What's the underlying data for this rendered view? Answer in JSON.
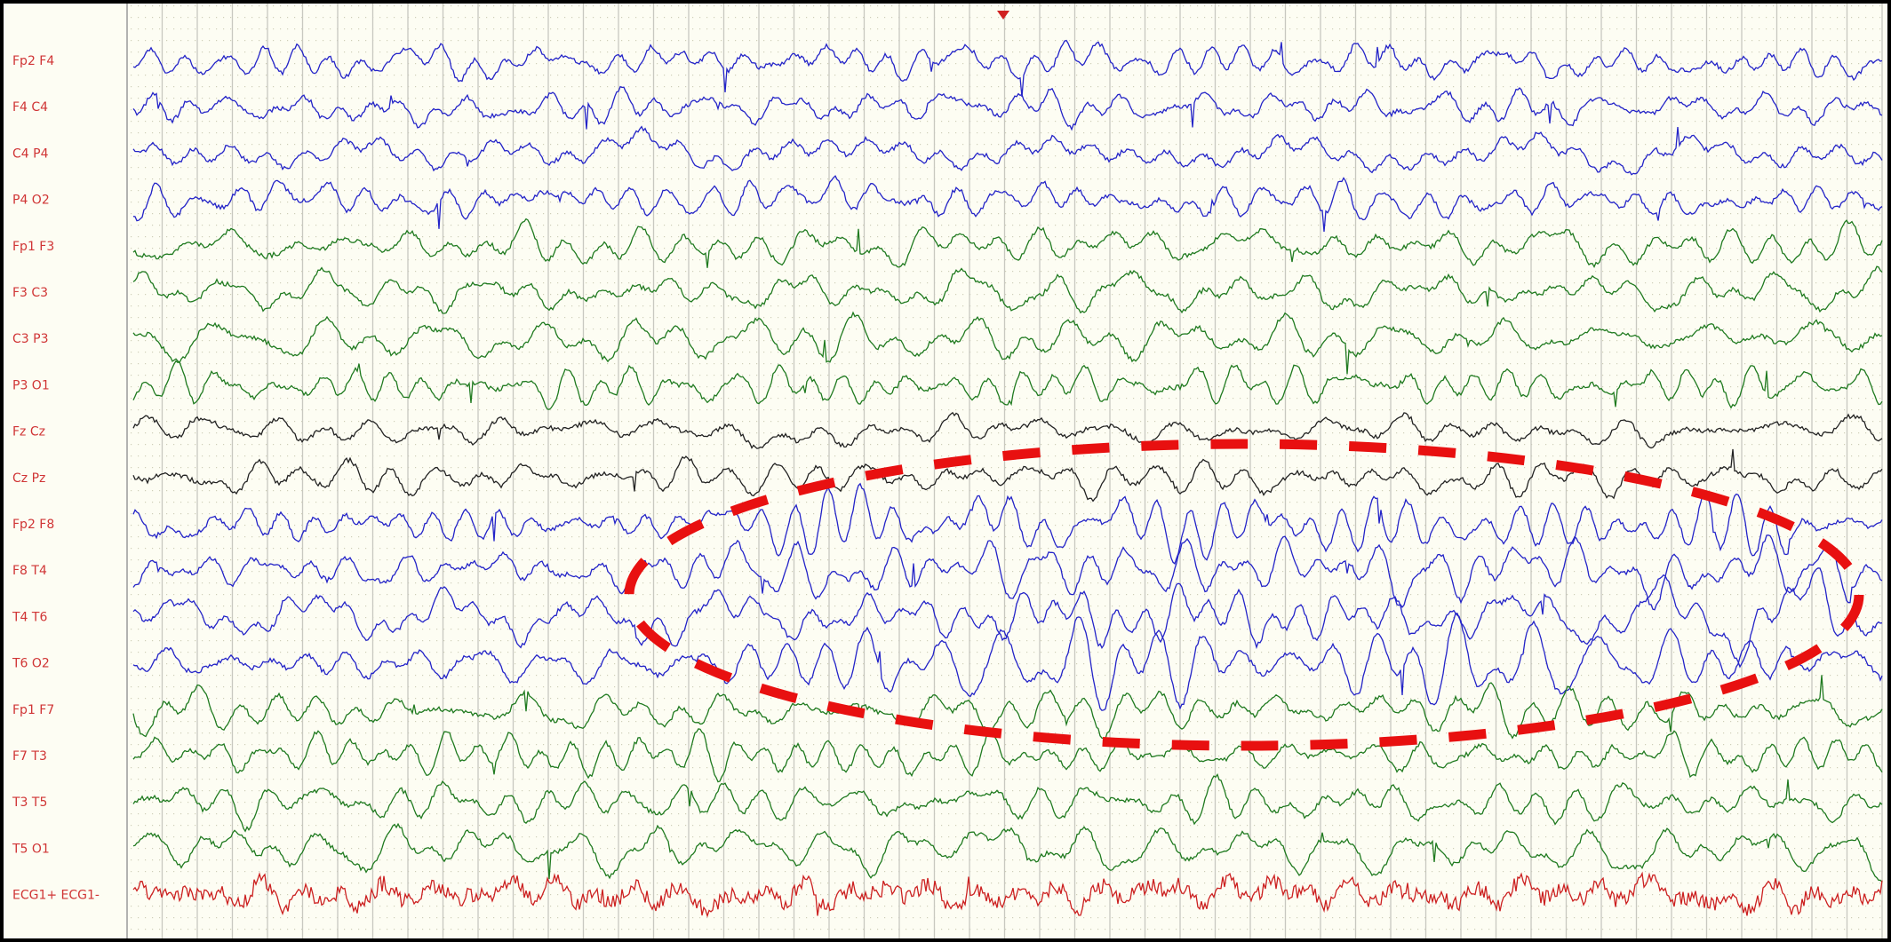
{
  "channels": [
    {
      "label": "Fp2 F4",
      "color": "#2323c8"
    },
    {
      "label": "F4 C4",
      "color": "#2323c8"
    },
    {
      "label": "C4 P4",
      "color": "#2323c8"
    },
    {
      "label": "P4 O2",
      "color": "#2323c8"
    },
    {
      "label": "Fp1 F3",
      "color": "#1f7a1f"
    },
    {
      "label": "F3 C3",
      "color": "#1f7a1f"
    },
    {
      "label": "C3 P3",
      "color": "#1f7a1f"
    },
    {
      "label": "P3 O1",
      "color": "#1f7a1f"
    },
    {
      "label": "Fz Cz",
      "color": "#222222"
    },
    {
      "label": "Cz Pz",
      "color": "#222222"
    },
    {
      "label": "Fp2 F8",
      "color": "#2323c8"
    },
    {
      "label": "F8 T4",
      "color": "#2323c8"
    },
    {
      "label": "T4 T6",
      "color": "#2323c8"
    },
    {
      "label": "T6 O2",
      "color": "#2323c8"
    },
    {
      "label": "Fp1 F7",
      "color": "#1f7a1f"
    },
    {
      "label": "F7 T3",
      "color": "#1f7a1f"
    },
    {
      "label": "T3 T5",
      "color": "#1f7a1f"
    },
    {
      "label": "T5 O1",
      "color": "#1f7a1f"
    },
    {
      "label": "ECG1+ ECG1-",
      "color": "#cc2020"
    }
  ]
}
